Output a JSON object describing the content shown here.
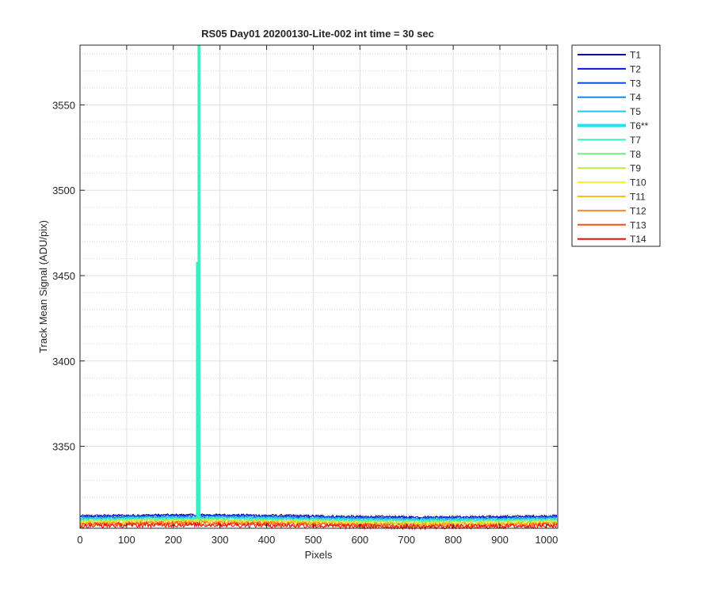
{
  "chart_data": {
    "type": "line",
    "title": "RS05 Day01 20200130-Lite-002 int time = 30 sec",
    "xlabel": "Pixels",
    "ylabel": "Track Mean Signal (ADU/pix)",
    "xlim": [
      0,
      1024
    ],
    "ylim": [
      3302,
      3585
    ],
    "xticks": [
      0,
      100,
      200,
      300,
      400,
      500,
      600,
      700,
      800,
      900,
      1000
    ],
    "yticks": [
      3350,
      3400,
      3450,
      3500,
      3550
    ],
    "grid": {
      "major": true,
      "minor": true
    },
    "legend_position": "outside-right",
    "highlighted_series": "T6**",
    "series": [
      {
        "name": "T1",
        "color": "#0000a3",
        "level": 3309.2,
        "noise": 0.7
      },
      {
        "name": "T2",
        "color": "#0019d6",
        "level": 3308.9,
        "noise": 0.7
      },
      {
        "name": "T3",
        "color": "#0c4de6",
        "level": 3308.3,
        "noise": 0.8
      },
      {
        "name": "T4",
        "color": "#1f87e0",
        "level": 3307.9,
        "noise": 0.8
      },
      {
        "name": "T5",
        "color": "#21c4f0",
        "level": 3307.6,
        "noise": 0.9
      },
      {
        "name": "T6**",
        "color": "#1ae6f2",
        "level": 3307.3,
        "noise": 0.9
      },
      {
        "name": "T7",
        "color": "#36f0c0",
        "level": 3306.9,
        "noise": 0.9,
        "spike": {
          "x": [
            252,
            258
          ],
          "y": [
            3585,
            3458
          ]
        }
      },
      {
        "name": "T8",
        "color": "#6df07c",
        "level": 3306.4,
        "noise": 1.0
      },
      {
        "name": "T9",
        "color": "#b8f03a",
        "level": 3306.0,
        "noise": 1.0
      },
      {
        "name": "T10",
        "color": "#f5f030",
        "level": 3305.5,
        "noise": 1.1
      },
      {
        "name": "T11",
        "color": "#f5c21c",
        "level": 3305.0,
        "noise": 1.1
      },
      {
        "name": "T12",
        "color": "#ff8a1a",
        "level": 3304.5,
        "noise": 1.2
      },
      {
        "name": "T13",
        "color": "#ff4a10",
        "level": 3304.0,
        "noise": 1.3
      },
      {
        "name": "T14",
        "color": "#ef0a0a",
        "level": 3303.4,
        "noise": 1.4
      }
    ]
  }
}
